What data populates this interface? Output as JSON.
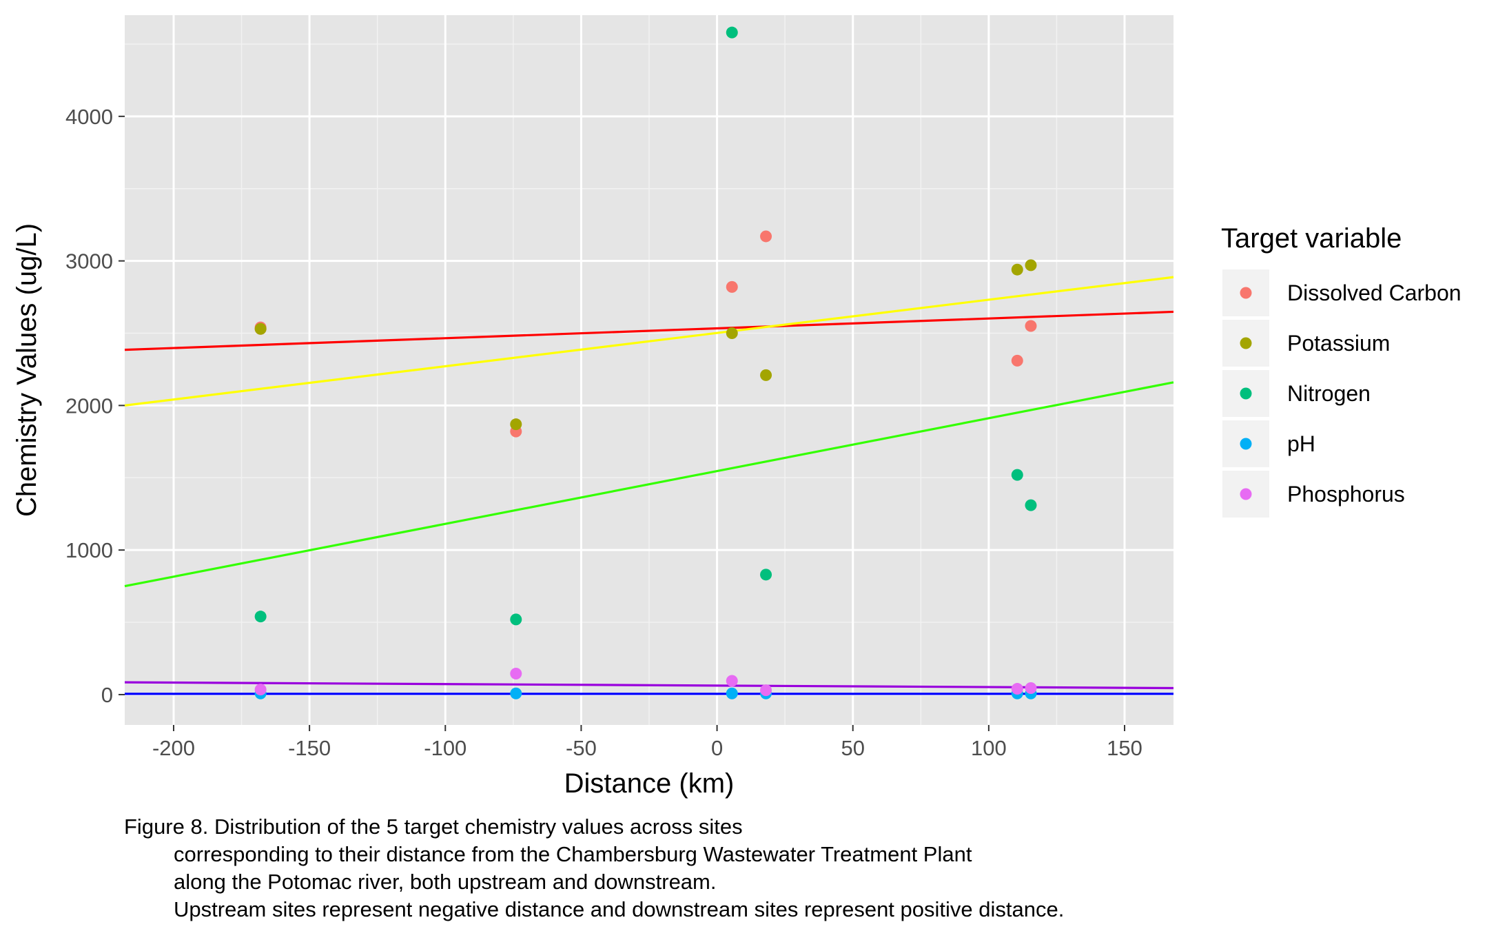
{
  "chart_data": {
    "type": "scatter",
    "xlabel": "Distance (km)",
    "ylabel": "Chemistry Values (ug/L)",
    "xlim": [
      -218,
      168
    ],
    "ylim": [
      -210,
      4700
    ],
    "x_ticks": [
      -200,
      -150,
      -100,
      -50,
      0,
      50,
      100,
      150
    ],
    "x_tick_labels": [
      "-200",
      "-150",
      "-100",
      "-50",
      "0",
      "50",
      "100",
      "150"
    ],
    "y_ticks": [
      0,
      1000,
      2000,
      3000,
      4000
    ],
    "y_tick_labels": [
      "0",
      "1000",
      "2000",
      "3000",
      "4000"
    ],
    "grid": true,
    "legend": {
      "title": "Target variable",
      "placement": "right"
    },
    "series": [
      {
        "name": "Dissolved Carbon",
        "color": "#F8766D",
        "points": [
          [
            -168,
            2540
          ],
          [
            -168,
            2530
          ],
          [
            -74,
            1820
          ],
          [
            5.5,
            2820
          ],
          [
            18,
            3170
          ],
          [
            110.5,
            2310
          ],
          [
            115.5,
            2550
          ]
        ]
      },
      {
        "name": "Potassium",
        "color": "#A3A500",
        "points": [
          [
            -168,
            2530
          ],
          [
            -74,
            1870
          ],
          [
            5.5,
            2500
          ],
          [
            18,
            2210
          ],
          [
            110.5,
            2940
          ],
          [
            115.5,
            2970
          ]
        ]
      },
      {
        "name": "Nitrogen",
        "color": "#00BF7D",
        "points": [
          [
            -168,
            540
          ],
          [
            -74,
            520
          ],
          [
            5.5,
            4580
          ],
          [
            18,
            830
          ],
          [
            110.5,
            1520
          ],
          [
            115.5,
            1310
          ]
        ]
      },
      {
        "name": "pH",
        "color": "#00B0F6",
        "points": [
          [
            -168,
            8
          ],
          [
            -74,
            8
          ],
          [
            5.5,
            8
          ],
          [
            18,
            8
          ],
          [
            110.5,
            8
          ],
          [
            115.5,
            8
          ]
        ]
      },
      {
        "name": "Phosphorus",
        "color": "#E76BF3",
        "points": [
          [
            -168,
            35
          ],
          [
            -74,
            145
          ],
          [
            5.5,
            95
          ],
          [
            18,
            30
          ],
          [
            110.5,
            40
          ],
          [
            115.5,
            45
          ]
        ]
      }
    ],
    "trend_lines": [
      {
        "color": "#FF0000",
        "from": [
          -218,
          2385
        ],
        "to": [
          168,
          2648
        ]
      },
      {
        "color": "#FFFF00",
        "from": [
          -218,
          2000
        ],
        "to": [
          168,
          2888
        ]
      },
      {
        "color": "#33FF00",
        "from": [
          -218,
          750
        ],
        "to": [
          168,
          2160
        ]
      },
      {
        "color": "#0000FF",
        "from": [
          -218,
          5
        ],
        "to": [
          168,
          5
        ]
      },
      {
        "color": "#9900DD",
        "from": [
          -218,
          85
        ],
        "to": [
          168,
          45
        ]
      }
    ]
  },
  "caption": {
    "lines": [
      "Figure 8. Distribution of the 5 target chemistry values across sites",
      "corresponding to their distance from the Chambersburg Wastewater Treatment Plant",
      "along the Potomac river, both upstream and downstream.",
      "Upstream sites represent negative distance and downstream sites represent positive distance."
    ]
  }
}
